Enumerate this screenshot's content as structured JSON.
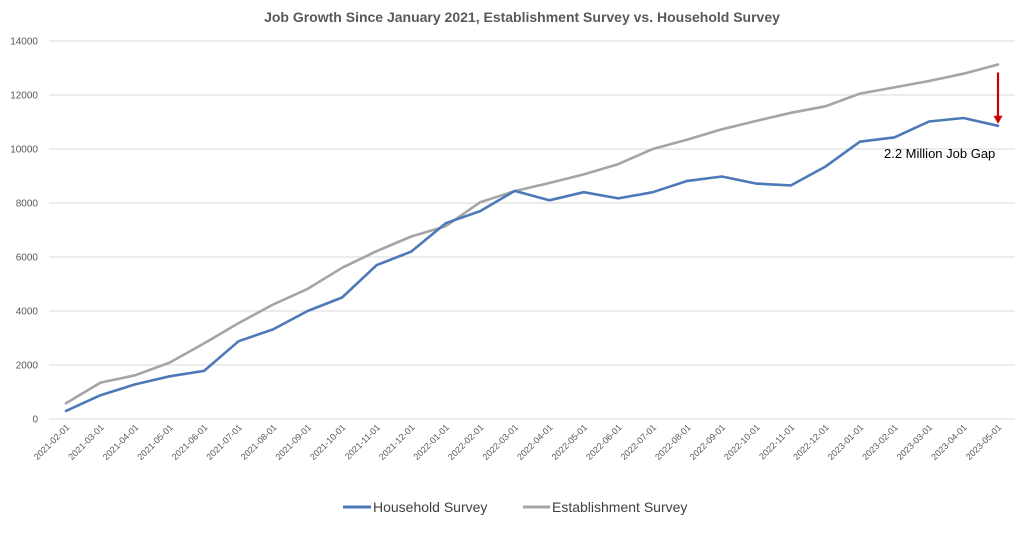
{
  "chart_data": {
    "type": "line",
    "title": "Job Growth Since January 2021, Establishment Survey vs. Household Survey",
    "xlabel": "",
    "ylabel": "",
    "ylim": [
      0,
      14000
    ],
    "yticks": [
      0,
      2000,
      4000,
      6000,
      8000,
      10000,
      12000,
      14000
    ],
    "grid": true,
    "legend_position": "bottom",
    "categories": [
      "2021-02-01",
      "2021-03-01",
      "2021-04-01",
      "2021-05-01",
      "2021-06-01",
      "2021-07-01",
      "2021-08-01",
      "2021-09-01",
      "2021-10-01",
      "2021-11-01",
      "2021-12-01",
      "2022-01-01",
      "2022-02-01",
      "2022-03-01",
      "2022-04-01",
      "2022-05-01",
      "2022-06-01",
      "2022-07-01",
      "2022-08-01",
      "2022-09-01",
      "2022-10-01",
      "2022-11-01",
      "2022-12-01",
      "2023-01-01",
      "2023-02-01",
      "2023-03-01",
      "2023-04-01",
      "2023-05-01"
    ],
    "series": [
      {
        "name": "Household Survey",
        "color": "#4e79b8",
        "values": [
          300,
          880,
          1280,
          1580,
          1780,
          2880,
          3320,
          4000,
          4500,
          5700,
          6200,
          7250,
          7700,
          8450,
          8100,
          8400,
          8170,
          8400,
          8820,
          8980,
          8720,
          8650,
          9350,
          10270,
          10430,
          11020,
          11150,
          10860
        ]
      },
      {
        "name": "Establishment Survey",
        "color": "#a5a5a5",
        "values": [
          580,
          1350,
          1620,
          2090,
          2800,
          3550,
          4240,
          4820,
          5600,
          6220,
          6760,
          7140,
          8030,
          8440,
          8740,
          9060,
          9440,
          10000,
          10350,
          10730,
          11040,
          11340,
          11580,
          12050,
          12280,
          12520,
          12790,
          13130
        ]
      }
    ],
    "annotations": [
      {
        "text": "2.2 Million Job Gap",
        "color": "#cc0000"
      }
    ]
  }
}
